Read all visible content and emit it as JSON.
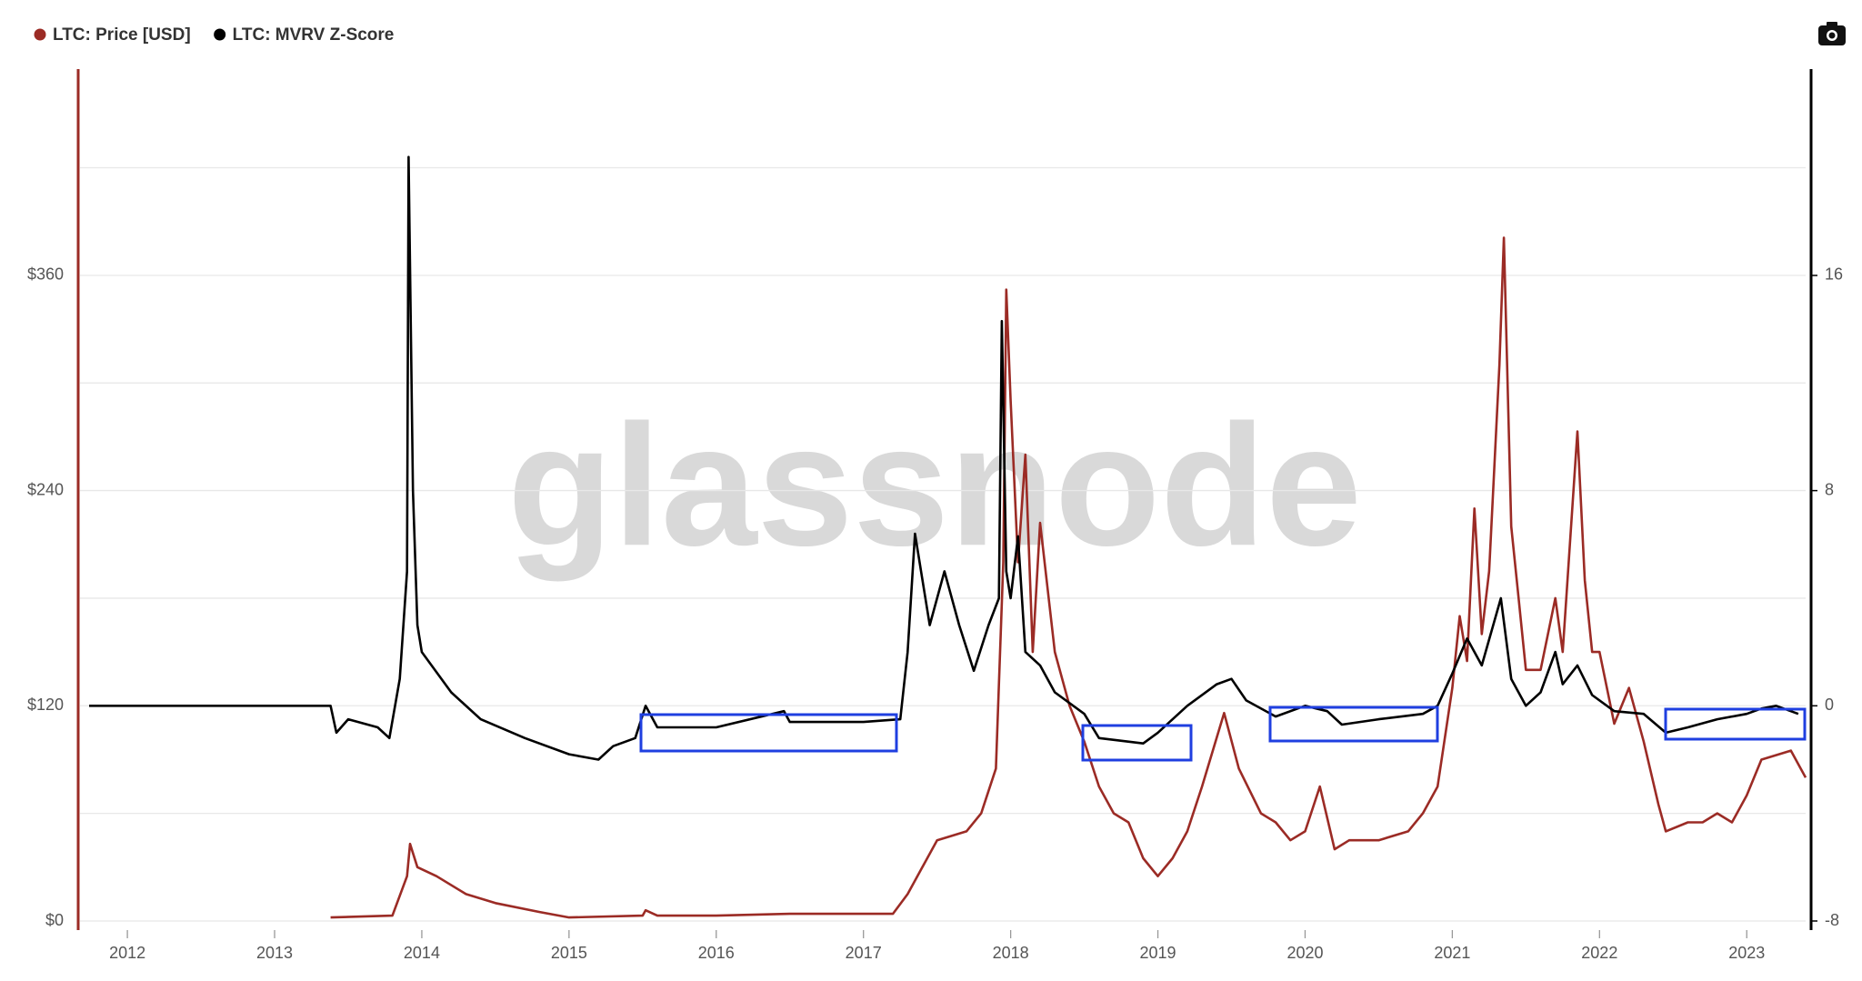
{
  "chart_data": {
    "type": "line",
    "watermark": "glassnode",
    "xlim": [
      2011.74,
      2023.4
    ],
    "xticks": [
      2012,
      2013,
      2014,
      2015,
      2016,
      2017,
      2018,
      2019,
      2020,
      2021,
      2022,
      2023
    ],
    "ylim": [
      0,
      475
    ],
    "yticks": [
      {
        "value": 0,
        "label": "$0"
      },
      {
        "value": 120,
        "label": "$120"
      },
      {
        "value": 240,
        "label": "$240"
      },
      {
        "value": 360,
        "label": "$360"
      }
    ],
    "grid_lines": [
      60,
      180,
      300,
      420
    ],
    "y2lim": [
      -8,
      23.67
    ],
    "y2ticks": [
      -8,
      0,
      8,
      16
    ],
    "grid": true,
    "legend": "top-left",
    "series": [
      {
        "name": "LTC: Price [USD]",
        "color": "#9b2b25",
        "x": [
          2013.38,
          2013.8,
          2013.9,
          2013.92,
          2013.97,
          2014.1,
          2014.3,
          2014.5,
          2014.8,
          2015.0,
          2015.5,
          2015.52,
          2015.6,
          2016.0,
          2016.5,
          2017.0,
          2017.2,
          2017.3,
          2017.4,
          2017.5,
          2017.7,
          2017.8,
          2017.9,
          2017.95,
          2017.97,
          2018.0,
          2018.05,
          2018.1,
          2018.15,
          2018.2,
          2018.3,
          2018.4,
          2018.5,
          2018.6,
          2018.7,
          2018.8,
          2018.9,
          2019.0,
          2019.1,
          2019.2,
          2019.3,
          2019.45,
          2019.55,
          2019.7,
          2019.8,
          2019.9,
          2020.0,
          2020.1,
          2020.2,
          2020.3,
          2020.5,
          2020.7,
          2020.8,
          2020.9,
          2021.0,
          2021.05,
          2021.1,
          2021.15,
          2021.2,
          2021.25,
          2021.32,
          2021.35,
          2021.4,
          2021.45,
          2021.5,
          2021.6,
          2021.7,
          2021.75,
          2021.85,
          2021.9,
          2021.95,
          2022.0,
          2022.1,
          2022.2,
          2022.3,
          2022.4,
          2022.45,
          2022.6,
          2022.7,
          2022.8,
          2022.9,
          2023.0,
          2023.1,
          2023.3,
          2023.4
        ],
        "values": [
          2,
          3,
          25,
          43,
          30,
          25,
          15,
          10,
          5,
          2,
          3,
          6,
          3,
          3,
          4,
          4,
          4,
          15,
          30,
          45,
          50,
          60,
          85,
          200,
          352,
          290,
          200,
          260,
          150,
          222,
          150,
          120,
          100,
          75,
          60,
          55,
          35,
          25,
          35,
          50,
          75,
          116,
          85,
          60,
          55,
          45,
          50,
          75,
          40,
          45,
          45,
          50,
          60,
          75,
          130,
          170,
          145,
          230,
          160,
          195,
          310,
          381,
          220,
          180,
          140,
          140,
          180,
          150,
          273,
          190,
          150,
          150,
          110,
          130,
          100,
          65,
          50,
          55,
          55,
          60,
          55,
          70,
          90,
          95,
          80
        ]
      },
      {
        "name": "LTC: MVRV Z-Score",
        "color": "#000000",
        "axis": "y2",
        "x": [
          2011.74,
          2013.38,
          2013.42,
          2013.5,
          2013.7,
          2013.78,
          2013.85,
          2013.9,
          2013.91,
          2013.94,
          2013.97,
          2014.0,
          2014.2,
          2014.4,
          2014.7,
          2015.0,
          2015.2,
          2015.3,
          2015.45,
          2015.52,
          2015.6,
          2016.0,
          2016.46,
          2016.5,
          2017.0,
          2017.25,
          2017.3,
          2017.35,
          2017.45,
          2017.55,
          2017.65,
          2017.75,
          2017.85,
          2017.92,
          2017.94,
          2017.97,
          2018.0,
          2018.05,
          2018.1,
          2018.2,
          2018.3,
          2018.5,
          2018.6,
          2018.9,
          2019.0,
          2019.2,
          2019.4,
          2019.5,
          2019.6,
          2019.8,
          2020.0,
          2020.15,
          2020.25,
          2020.5,
          2020.8,
          2020.9,
          2021.0,
          2021.1,
          2021.2,
          2021.33,
          2021.4,
          2021.5,
          2021.6,
          2021.7,
          2021.75,
          2021.85,
          2021.95,
          2022.1,
          2022.3,
          2022.45,
          2022.6,
          2022.8,
          2023.0,
          2023.1,
          2023.2,
          2023.35
        ],
        "values": [
          0,
          0,
          -1,
          -0.5,
          -0.8,
          -1.2,
          1,
          5,
          20.4,
          8,
          3,
          2,
          0.5,
          -0.5,
          -1.2,
          -1.8,
          -2,
          -1.5,
          -1.2,
          0,
          -0.8,
          -0.8,
          -0.2,
          -0.6,
          -0.6,
          -0.5,
          2,
          6.4,
          3,
          5,
          3,
          1.3,
          3,
          4,
          14.3,
          5,
          4,
          6.3,
          2,
          1.5,
          0.5,
          -0.3,
          -1.2,
          -1.4,
          -1,
          0,
          0.8,
          1,
          0.2,
          -0.4,
          0,
          -0.2,
          -0.7,
          -0.5,
          -0.3,
          0,
          1.2,
          2.5,
          1.5,
          4,
          1,
          0,
          0.5,
          2,
          0.8,
          1.5,
          0.4,
          -0.2,
          -0.3,
          -1,
          -0.8,
          -0.5,
          -0.3,
          -0.1,
          0,
          -0.3
        ]
      }
    ]
  }
}
